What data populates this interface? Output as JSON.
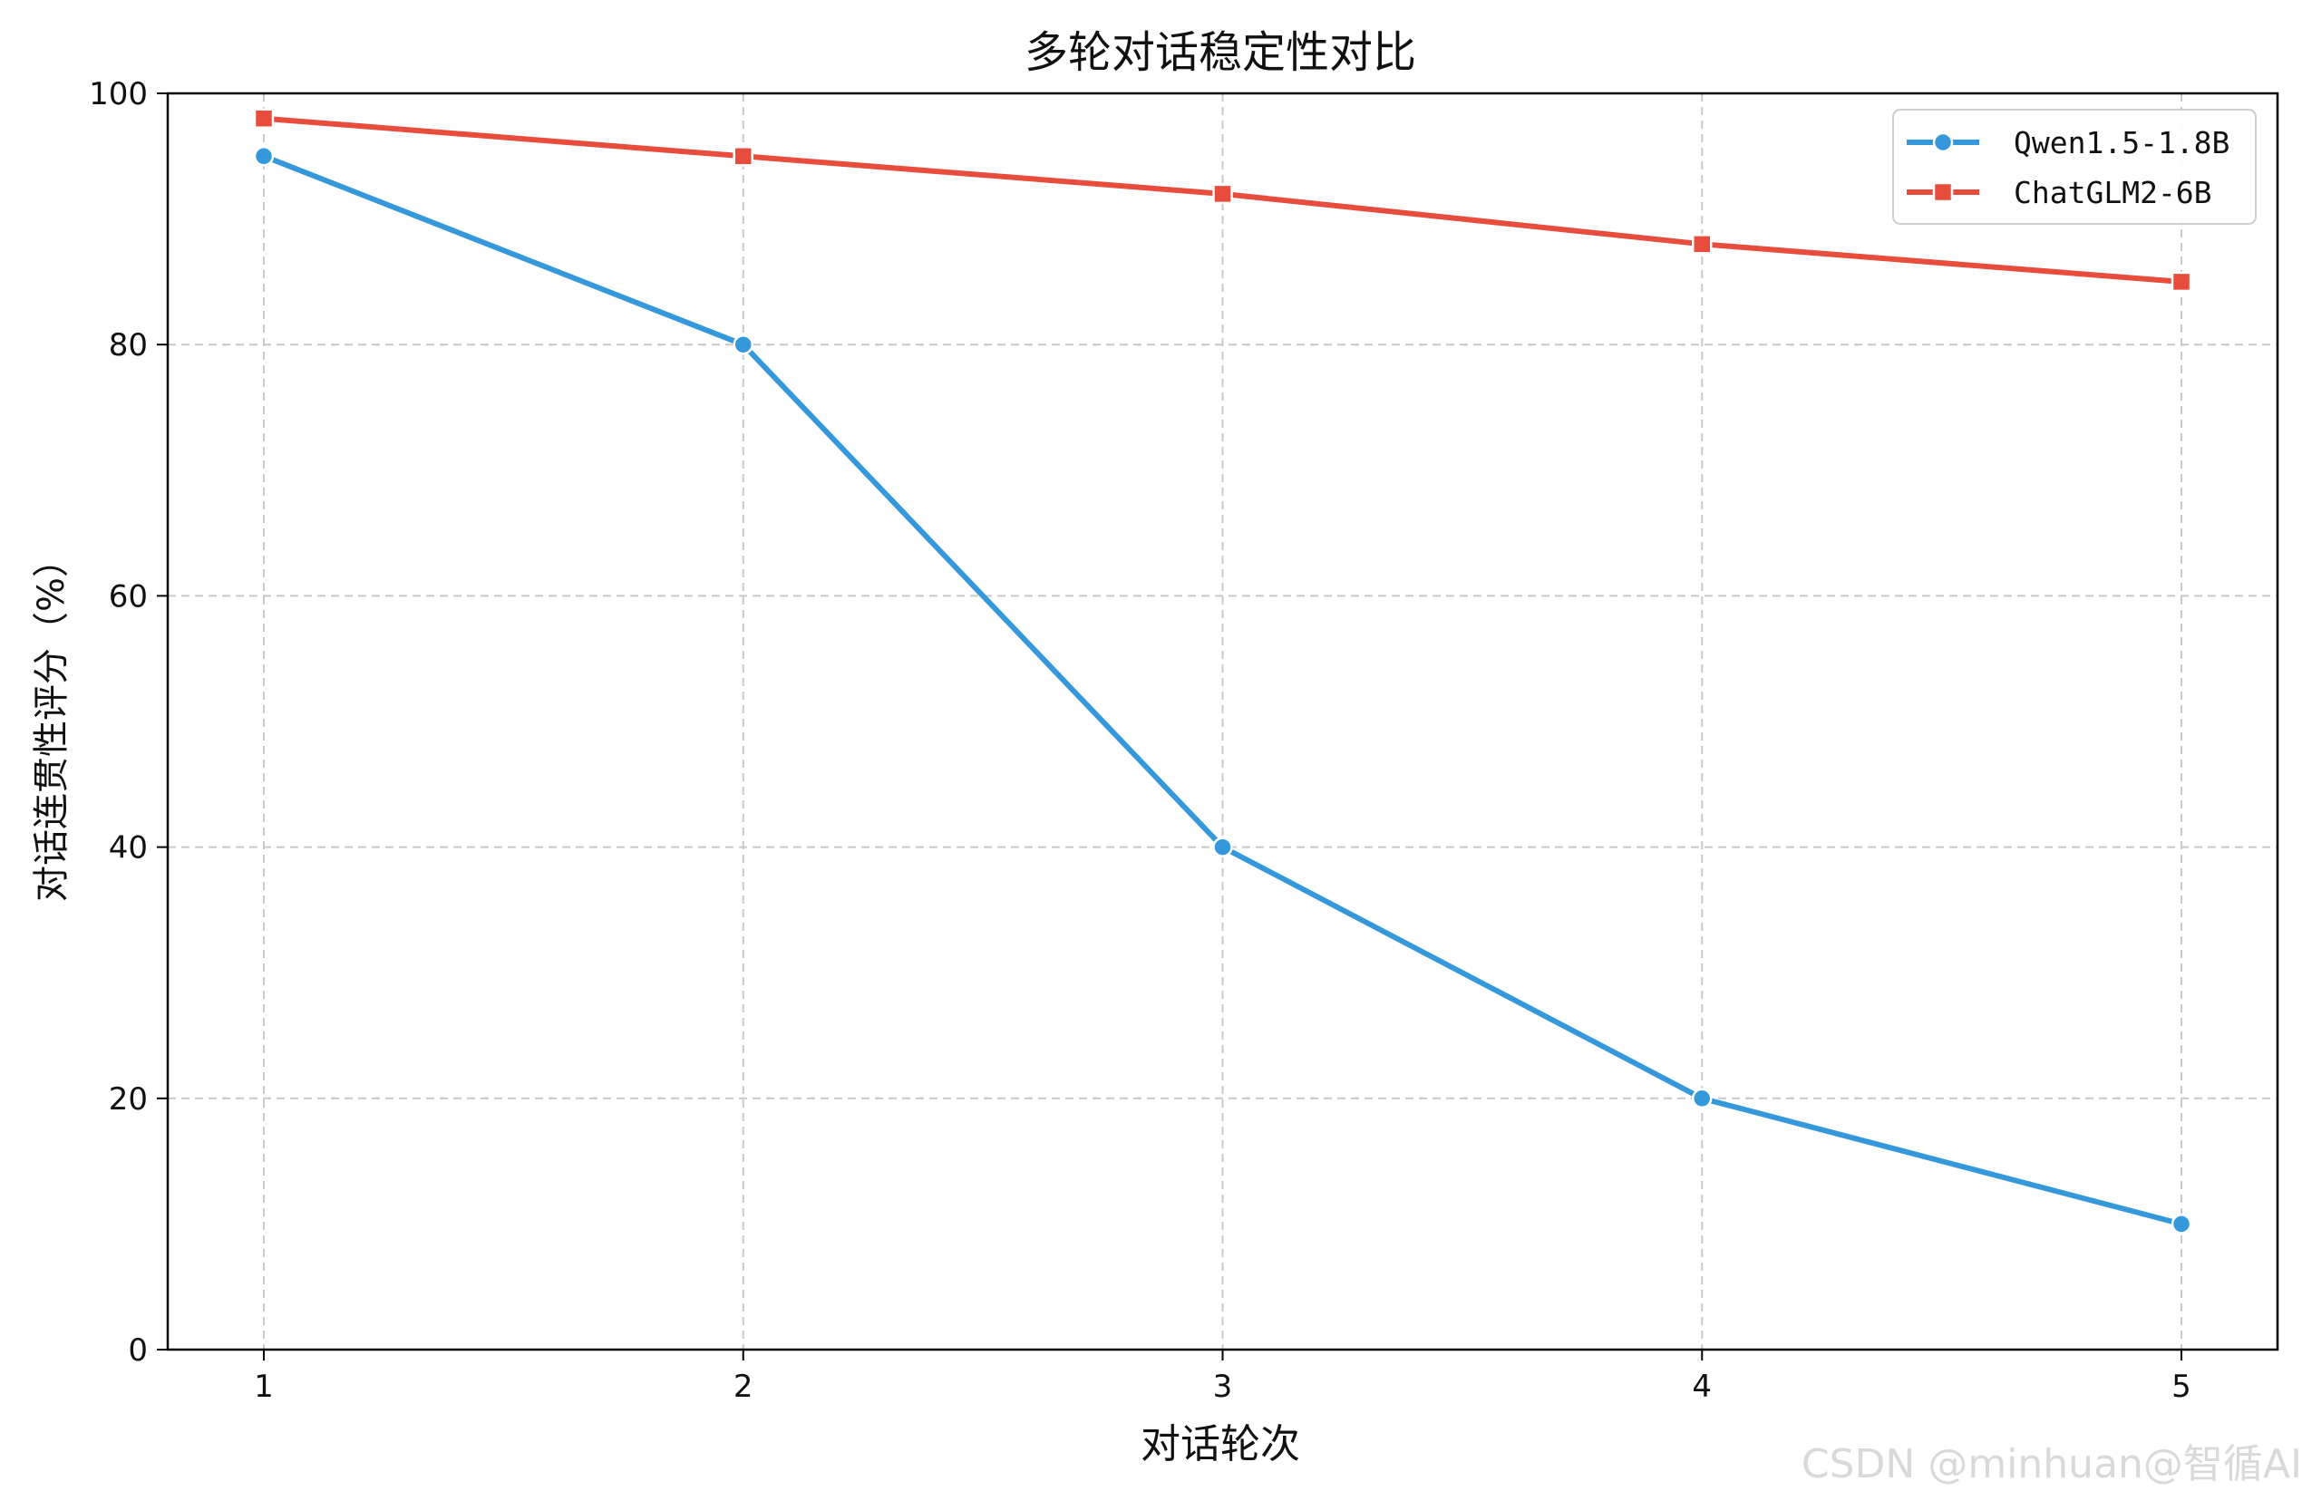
{
  "chart_data": {
    "type": "line",
    "title": "多轮对话稳定性对比",
    "xlabel": "对话轮次",
    "ylabel": "对话连贯性评分（%）",
    "x": [
      1,
      2,
      3,
      4,
      5
    ],
    "xticks": [
      "1",
      "2",
      "3",
      "4",
      "5"
    ],
    "yticks": [
      "0",
      "20",
      "40",
      "60",
      "80",
      "100"
    ],
    "ylim": [
      0,
      100
    ],
    "grid": true,
    "legend_position": "top-right",
    "series": [
      {
        "name": "Qwen1.5-1.8B",
        "values": [
          95,
          80,
          40,
          20,
          10
        ],
        "color": "#3498db",
        "marker": "circle"
      },
      {
        "name": "ChatGLM2-6B",
        "values": [
          98,
          95,
          92,
          88,
          85
        ],
        "color": "#e74c3c",
        "marker": "square"
      }
    ]
  },
  "watermark": "CSDN @minhuan@智循AI"
}
